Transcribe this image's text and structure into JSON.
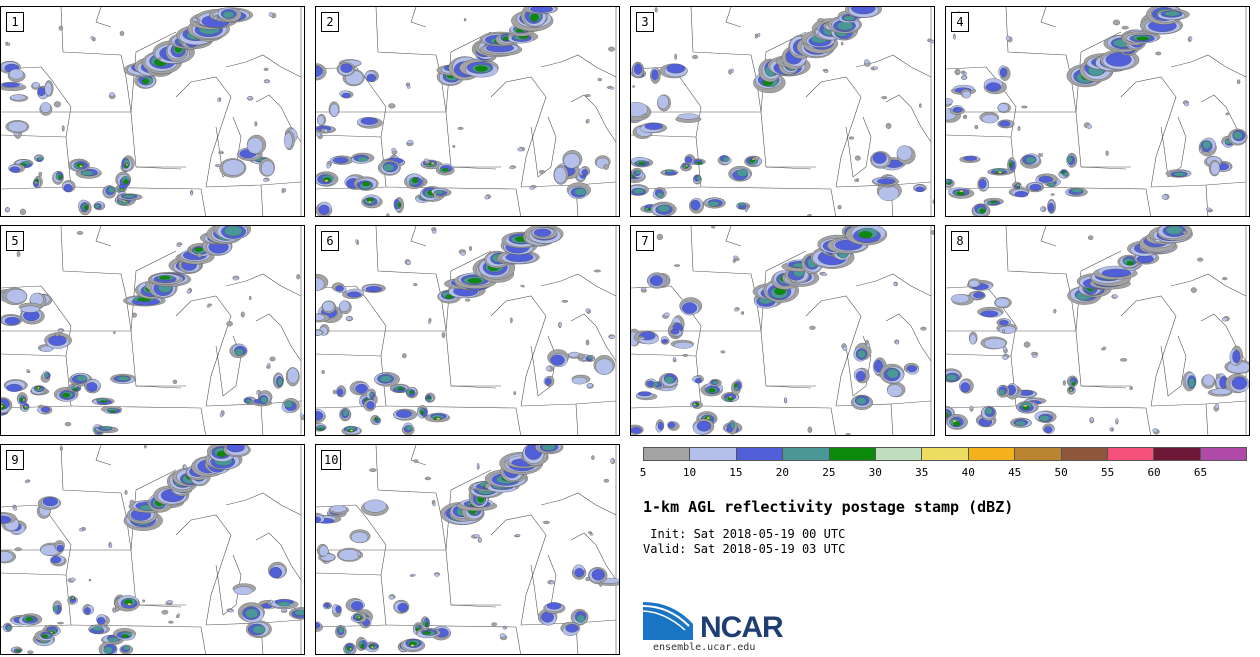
{
  "panels": [
    {
      "label": "1"
    },
    {
      "label": "2"
    },
    {
      "label": "3"
    },
    {
      "label": "4"
    },
    {
      "label": "5"
    },
    {
      "label": "6"
    },
    {
      "label": "7"
    },
    {
      "label": "8"
    },
    {
      "label": "9"
    },
    {
      "label": "10"
    }
  ],
  "colorbar": {
    "ticks": [
      "5",
      "10",
      "15",
      "20",
      "25",
      "30",
      "35",
      "40",
      "45",
      "50",
      "55",
      "60",
      "65"
    ],
    "colors": [
      "#a3a3a3",
      "#b4c0ea",
      "#5160d8",
      "#4a9797",
      "#0b8a0b",
      "#bfdfbf",
      "#ecdc61",
      "#f2b11d",
      "#ba8431",
      "#8f573c",
      "#f4507a",
      "#6f1737",
      "#b04aa8"
    ]
  },
  "title": "1-km AGL reflectivity postage stamp (dBZ)",
  "init": " Init: Sat 2018-05-19 00 UTC",
  "valid": "Valid: Sat 2018-05-19 03 UTC",
  "logo": {
    "text": "NCAR",
    "site": "ensemble.ucar.edu"
  }
}
